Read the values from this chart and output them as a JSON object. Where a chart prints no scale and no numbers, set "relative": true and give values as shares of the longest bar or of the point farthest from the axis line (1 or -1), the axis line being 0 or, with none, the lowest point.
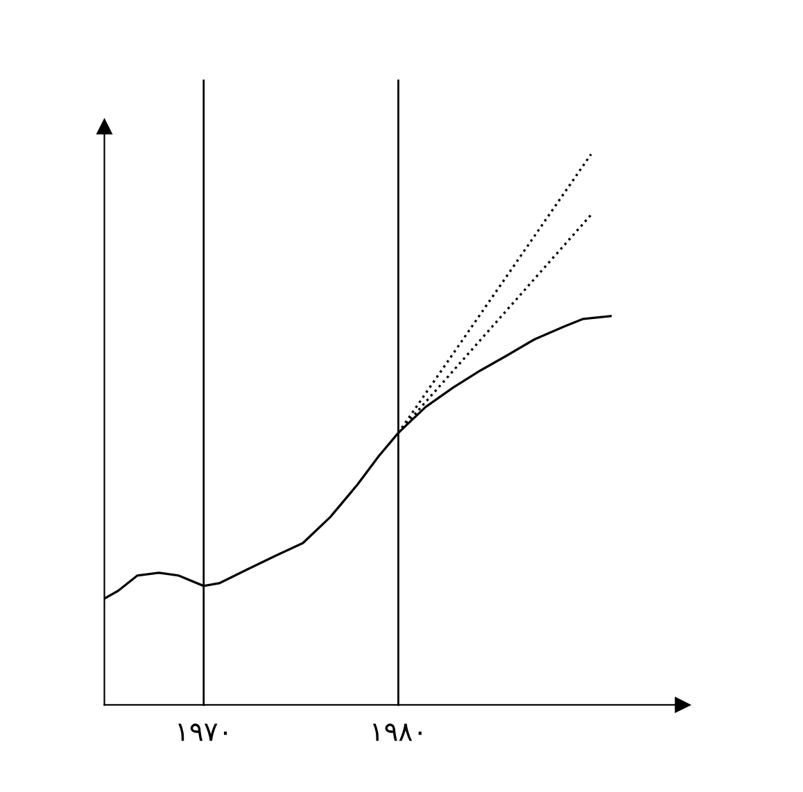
{
  "chart_data": {
    "type": "line",
    "relative": true,
    "xlim": [
      1964.9,
      1994.6
    ],
    "xticks": [
      {
        "value": 1970,
        "label": "۱۹۷۰"
      },
      {
        "value": 1980,
        "label": "۱۹۸۰"
      }
    ],
    "ref_lines": [
      {
        "axis": "x",
        "value": 1970,
        "color": "#000000"
      },
      {
        "axis": "x",
        "value": 1980,
        "color": "#000000"
      }
    ],
    "series": [
      {
        "color": "#000000",
        "line_style": "solid",
        "x": [
          1964.9,
          1965.6,
          1966.6,
          1967.7,
          1968.7,
          1970.0,
          1970.8,
          1972.3,
          1973.7,
          1975.1,
          1976.5,
          1977.9,
          1979.0,
          1980.0,
          1981.4,
          1982.8,
          1984.2,
          1985.6,
          1987.0,
          1988.5,
          1989.5,
          1990.9
        ],
        "values": [
          0.193,
          0.207,
          0.235,
          0.24,
          0.235,
          0.216,
          0.221,
          0.247,
          0.271,
          0.294,
          0.341,
          0.4,
          0.452,
          0.494,
          0.541,
          0.576,
          0.607,
          0.635,
          0.664,
          0.687,
          0.701,
          0.706
        ]
      },
      {
        "color": "#000000",
        "line_style": "dotted",
        "x": [
          1980.0,
          1989.9
        ],
        "values": [
          0.494,
          1.0
        ]
      },
      {
        "color": "#000000",
        "line_style": "dotted",
        "x": [
          1980.0,
          1990.0
        ],
        "values": [
          0.494,
          0.894
        ]
      }
    ],
    "grid": false,
    "legend": false
  }
}
